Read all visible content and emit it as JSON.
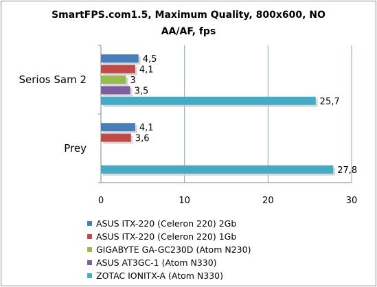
{
  "chart_data": {
    "type": "bar",
    "orientation": "horizontal",
    "title": "SmartFPS.com1.5, Maximum Quality, 800x600, NO AA/AF, fps",
    "title_lines": [
      "SmartFPS.com1.5, Maximum Quality, 800x600, NO",
      "AA/AF, fps"
    ],
    "categories": [
      "Serios Sam 2",
      "Prey"
    ],
    "series": [
      {
        "name": "ASUS ITX-220 (Celeron 220) 2Gb",
        "color": "#4a7ebb",
        "values": [
          4.5,
          4.1
        ]
      },
      {
        "name": "ASUS ITX-220 (Celeron 220) 1Gb",
        "color": "#be4b48",
        "values": [
          4.1,
          3.6
        ]
      },
      {
        "name": "GIGABYTE GA-GC230D (Atom N230)",
        "color": "#98b954",
        "values": [
          3,
          null
        ]
      },
      {
        "name": "ASUS AT3GC-1 (Atom N330)",
        "color": "#7d5fa0",
        "values": [
          3.5,
          null
        ]
      },
      {
        "name": "ZOTAC IONITX-A (Atom N330)",
        "color": "#46aac5",
        "values": [
          25.7,
          27.8
        ]
      }
    ],
    "data_labels": [
      [
        "4,5",
        "4,1"
      ],
      [
        "4,1",
        "3,6"
      ],
      [
        "3",
        ""
      ],
      [
        "3,5",
        ""
      ],
      [
        "25,7",
        "27,8"
      ]
    ],
    "xlim": [
      0,
      30
    ],
    "xticks": [
      0,
      10,
      20,
      30
    ],
    "xtick_labels": [
      "0",
      "10",
      "20",
      "30"
    ],
    "grid": "vertical",
    "legend_position": "bottom",
    "xlabel": "",
    "ylabel": ""
  }
}
